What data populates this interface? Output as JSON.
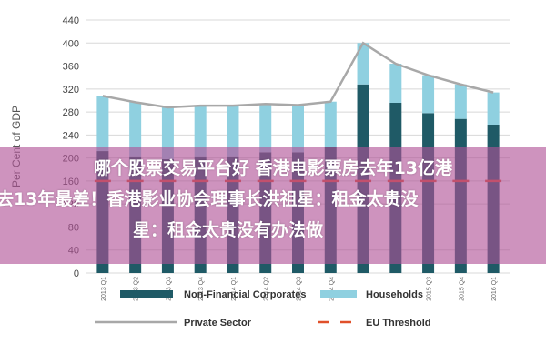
{
  "chart_data": {
    "type": "bar",
    "ylabel": "Per Cent of GDP",
    "ylim": [
      0,
      440
    ],
    "yticks": [
      0,
      40,
      80,
      120,
      160,
      200,
      240,
      280,
      320,
      360,
      400,
      440
    ],
    "categories": [
      "2013 Q1",
      "2013 Q2",
      "2013 Q3",
      "2013 Q4",
      "2014 Q1",
      "2014 Q2",
      "2014 Q3",
      "2014 Q4",
      "2015 Q1",
      "2015 Q2",
      "2015 Q3",
      "2015 Q4",
      "2016 Q1"
    ],
    "visible_categories": [
      "2013 Q1",
      "2013 Q2",
      "2013 Q3",
      "2013 Q4",
      "2014 Q1",
      "2014 Q2",
      "2014 Q3",
      "2014 Q4",
      "",
      "",
      "2015 Q3",
      "2015 Q4",
      "2016 Q1"
    ],
    "stacked": true,
    "grid": true,
    "legend_position": "bottom",
    "series": [
      {
        "name": "Non-Financial Corporates",
        "kind": "bar",
        "color": "#1f5a66",
        "values": [
          212,
          203,
          198,
          203,
          203,
          210,
          210,
          220,
          328,
          296,
          278,
          268,
          258
        ]
      },
      {
        "name": "Households",
        "kind": "bar",
        "color": "#8fd0e0",
        "values": [
          96,
          94,
          90,
          88,
          88,
          84,
          82,
          78,
          72,
          68,
          66,
          60,
          56
        ]
      },
      {
        "name": "Private Sector",
        "kind": "line",
        "color": "#a8a8a8",
        "values": [
          308,
          297,
          288,
          291,
          291,
          294,
          292,
          298,
          400,
          364,
          344,
          328,
          314
        ]
      },
      {
        "name": "EU Threshold",
        "kind": "threshold",
        "color": "#e0502a",
        "values": [
          160,
          160,
          160,
          160,
          160,
          160,
          160,
          160,
          160,
          160,
          160,
          160,
          160
        ]
      }
    ]
  },
  "overlay": {
    "line1": "哪个股票交易平台好 香港电影票房去年13亿港",
    "line2": "去13年最差！香港影业协会理事长洪祖星：租金太贵没",
    "line3": "星：租金太贵没有办法做"
  },
  "colors": {
    "banner": "#b05096",
    "grid": "#d8d8d8"
  }
}
